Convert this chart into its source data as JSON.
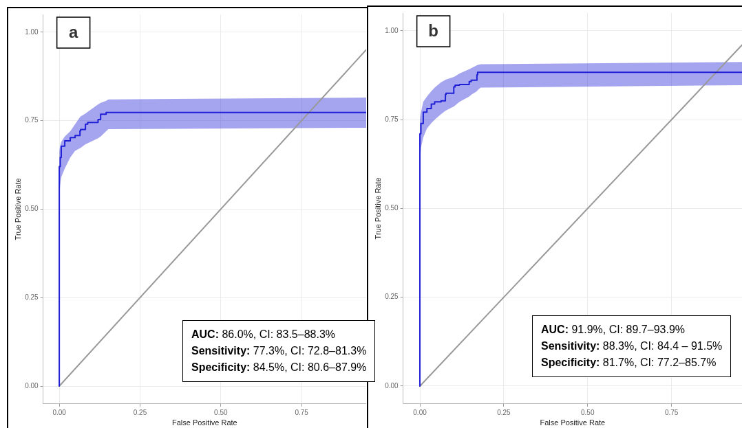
{
  "chart_data": [
    {
      "type": "line",
      "title": "a",
      "xlabel": "False Positive Rate",
      "ylabel": "True Positive Rate",
      "xlim": [
        -0.05,
        0.95
      ],
      "ylim": [
        -0.05,
        1.05
      ],
      "xticks": [
        {
          "value": 0,
          "label": "0.00"
        },
        {
          "value": 0.25,
          "label": "0.25"
        },
        {
          "value": 0.5,
          "label": "0.50"
        },
        {
          "value": 0.75,
          "label": "0.75"
        }
      ],
      "yticks": [
        {
          "value": 0,
          "label": "0.00"
        },
        {
          "value": 0.25,
          "label": "0.25"
        },
        {
          "value": 0.5,
          "label": "0.50"
        },
        {
          "value": 0.75,
          "label": "0.75"
        },
        {
          "value": 1,
          "label": "1.00"
        }
      ],
      "grid": true,
      "legend": false,
      "series": [
        {
          "type": "step",
          "color": "#1f1fd6",
          "x": [
            0,
            0,
            0.003,
            0.006,
            0.017,
            0.034,
            0.049,
            0.064,
            0.066,
            0.081,
            0.088,
            0.12,
            0.128,
            0.145,
            0.152,
            0.95
          ],
          "values": [
            0,
            0.584,
            0.62,
            0.646,
            0.678,
            0.693,
            0.702,
            0.708,
            0.721,
            0.725,
            0.74,
            0.745,
            0.753,
            0.768,
            0.773,
            0.773
          ],
          "lower": [
            null,
            0.54,
            0.57,
            0.59,
            0.615,
            0.646,
            0.665,
            0.672,
            0.673,
            0.683,
            0.686,
            0.7,
            0.705,
            0.72,
            0.726,
            0.73
          ],
          "upper": [
            null,
            0.665,
            0.68,
            0.69,
            0.705,
            0.72,
            0.74,
            0.76,
            0.762,
            0.77,
            0.775,
            0.796,
            0.8,
            0.806,
            0.81,
            0.815
          ]
        },
        {
          "type": "line",
          "color": "#999999",
          "x": [
            0,
            0.95
          ],
          "values": [
            0,
            0.95
          ]
        }
      ],
      "annotations": [
        "AUC: 86.0%, CI: 83.5–88.3%",
        "Sensitivity: 77.3%, CI: 72.8–81.3%",
        "Specificity: 84.5%, CI: 80.6–87.9%"
      ]
    },
    {
      "type": "line",
      "title": "b",
      "xlabel": "False Positive Rate",
      "ylabel": "True Positive Rate",
      "xlim": [
        -0.05,
        0.96
      ],
      "ylim": [
        -0.05,
        1.05
      ],
      "xticks": [
        {
          "value": 0,
          "label": "0.00"
        },
        {
          "value": 0.25,
          "label": "0.25"
        },
        {
          "value": 0.5,
          "label": "0.50"
        },
        {
          "value": 0.75,
          "label": "0.75"
        }
      ],
      "yticks": [
        {
          "value": 0,
          "label": "0.00"
        },
        {
          "value": 0.25,
          "label": "0.25"
        },
        {
          "value": 0.5,
          "label": "0.50"
        },
        {
          "value": 0.75,
          "label": "0.75"
        },
        {
          "value": 1,
          "label": "1.00"
        }
      ],
      "grid": true,
      "legend": false,
      "series": [
        {
          "type": "step",
          "color": "#1f1fd6",
          "x": [
            0,
            0,
            0.003,
            0.01,
            0.021,
            0.034,
            0.044,
            0.063,
            0.076,
            0.078,
            0.101,
            0.105,
            0.118,
            0.147,
            0.153,
            0.17,
            0.172,
            0.181,
            0.96
          ],
          "values": [
            0,
            0.666,
            0.71,
            0.739,
            0.771,
            0.781,
            0.794,
            0.8,
            0.803,
            0.821,
            0.824,
            0.842,
            0.847,
            0.849,
            0.857,
            0.861,
            0.876,
            0.883,
            0.883
          ],
          "lower": [
            null,
            0.62,
            0.67,
            0.7,
            0.725,
            0.74,
            0.75,
            0.765,
            0.775,
            0.776,
            0.787,
            0.79,
            0.8,
            0.815,
            0.82,
            0.83,
            0.833,
            0.84,
            0.847
          ],
          "upper": [
            null,
            0.752,
            0.77,
            0.8,
            0.815,
            0.83,
            0.84,
            0.855,
            0.862,
            0.863,
            0.87,
            0.872,
            0.88,
            0.892,
            0.895,
            0.903,
            0.904,
            0.906,
            0.912
          ]
        },
        {
          "type": "line",
          "color": "#999999",
          "x": [
            0,
            0.96
          ],
          "values": [
            0,
            0.96
          ]
        }
      ],
      "annotations": [
        "AUC: 91.9%, CI: 89.7–93.9%",
        "Sensitivity: 88.3%, CI: 84.4 – 91.5%",
        "Specificity: 81.7%, CI: 77.2–85.7%"
      ]
    }
  ]
}
